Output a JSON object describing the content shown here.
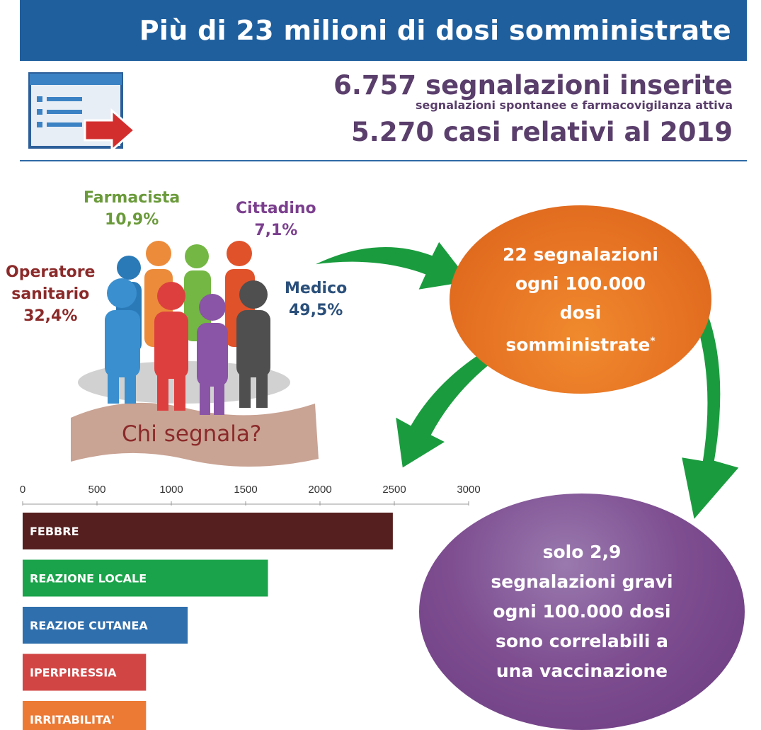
{
  "header": {
    "title": "Più di 23 milioni di dosi somministrate"
  },
  "stats": {
    "reports": "6.757 segnalazioni inserite",
    "reports_detail": "segnalazioni spontanee e farmacovigilanza attiva",
    "cases": "5.270 casi relativi al 2019"
  },
  "reporters": {
    "farmacista": {
      "label": "Farmacista",
      "pct": "10,9%",
      "color": "#6a9a3a"
    },
    "cittadino": {
      "label": "Cittadino",
      "pct": "7,1%",
      "color": "#7b3f8e"
    },
    "operatore": {
      "label_line1": "Operatore",
      "label_line2": "sanitario",
      "pct": "32,4%",
      "color": "#8b2a2a"
    },
    "medico": {
      "label": "Medico",
      "pct": "49,5%",
      "color": "#2a4f7a"
    },
    "question": "Chi segnala?"
  },
  "bubbles": {
    "orange": {
      "lines": [
        "22 segnalazioni",
        "ogni 100.000",
        "dosi",
        "somministrate"
      ],
      "mark": "*"
    },
    "purple": {
      "lines": [
        "solo 2,9",
        "segnalazioni gravi",
        "ogni 100.000 dosi",
        "sono correlabili a",
        "una vaccinazione"
      ]
    }
  },
  "icons": {
    "document": "document-arrow-icon"
  },
  "chart_data": {
    "type": "bar",
    "orientation": "horizontal",
    "categories": [
      "FEBBRE",
      "REAZIONE LOCALE",
      "REAZIOE CUTANEA",
      "IPERPIRESSIA",
      "IRRITABILITA'"
    ],
    "values": [
      2490,
      1650,
      1110,
      830,
      830
    ],
    "colors": [
      "#561f1f",
      "#1aa34a",
      "#2f6fad",
      "#d24545",
      "#ec7a35"
    ],
    "xlim": [
      0,
      3000
    ],
    "ticks": [
      0,
      500,
      1000,
      1500,
      2000,
      2500,
      3000
    ],
    "tick_labels": [
      "0",
      "500",
      "1000",
      "1500",
      "2000",
      "2500",
      "3000"
    ],
    "axis_position": "top"
  }
}
